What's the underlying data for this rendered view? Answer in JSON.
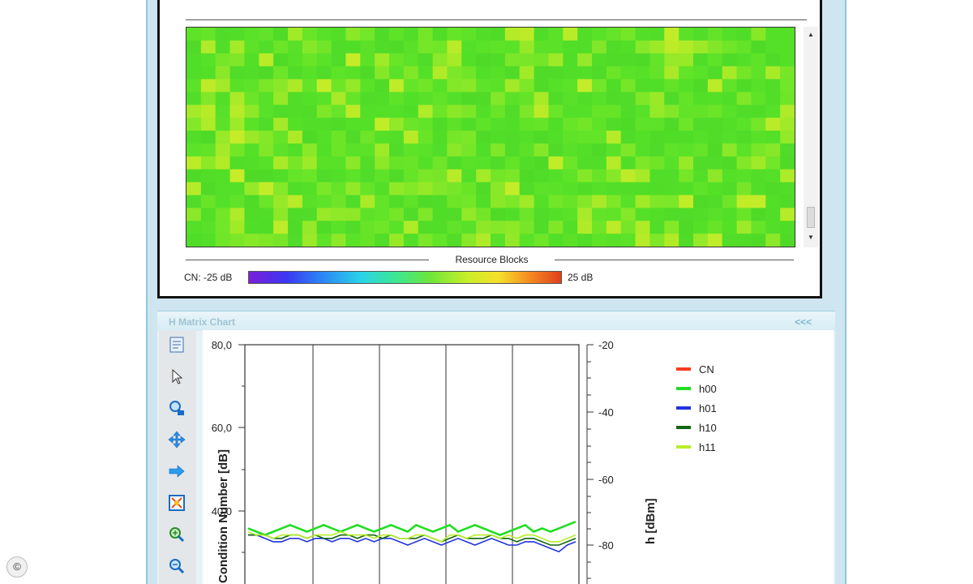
{
  "heatmap": {
    "axis_label": "Resource Blocks",
    "colorbar_min_label": "CN: -25 dB",
    "colorbar_max_label": "25 dB"
  },
  "h_matrix": {
    "panel_title": "H Matrix Chart",
    "collapse_label": "<<<",
    "tools": [
      "properties-icon",
      "pointer-icon",
      "zoom-fit-icon",
      "pan-icon",
      "arrow-right-icon",
      "zoom-box-icon",
      "zoom-in-icon",
      "zoom-out-icon"
    ]
  },
  "copyright_symbol": "©",
  "chart_data": {
    "type": "line",
    "ylabel": "Condition Number [dB]",
    "y2label": "h [dBm]",
    "y_ticks": [
      "80,0",
      "60,0",
      "40,0"
    ],
    "y2_ticks": [
      "-20",
      "-40",
      "-60",
      "-80"
    ],
    "ylim": [
      20,
      80
    ],
    "y2lim": [
      -120,
      -20
    ],
    "legend_placement": "right",
    "grid": "vertical",
    "series": [
      {
        "name": "CN",
        "color": "#ff3a20",
        "values": []
      },
      {
        "name": "h00",
        "color": "#22dd22",
        "values": [
          -75,
          -76,
          -77,
          -76,
          -75,
          -74,
          -75,
          -76,
          -75,
          -74,
          -75,
          -76,
          -75,
          -74,
          -75,
          -76,
          -75,
          -74,
          -75,
          -76,
          -74,
          -75,
          -76,
          -75,
          -74,
          -76,
          -75,
          -74,
          -75,
          -76,
          -77,
          -76,
          -75,
          -74,
          -76,
          -75,
          -76,
          -75,
          -74,
          -73
        ]
      },
      {
        "name": "h01",
        "color": "#2233dd",
        "values": [
          -77,
          -77,
          -78,
          -79,
          -79,
          -78,
          -78,
          -79,
          -78,
          -78,
          -79,
          -78,
          -78,
          -79,
          -78,
          -79,
          -78,
          -78,
          -79,
          -80,
          -79,
          -78,
          -79,
          -80,
          -79,
          -78,
          -79,
          -80,
          -79,
          -78,
          -79,
          -80,
          -80,
          -79,
          -79,
          -80,
          -81,
          -82,
          -80,
          -79
        ]
      },
      {
        "name": "h10",
        "color": "#116611",
        "values": [
          -77,
          -77,
          -77,
          -78,
          -78,
          -77,
          -77,
          -78,
          -77,
          -78,
          -78,
          -77,
          -77,
          -78,
          -77,
          -77,
          -78,
          -77,
          -78,
          -78,
          -78,
          -77,
          -78,
          -79,
          -78,
          -77,
          -78,
          -78,
          -78,
          -77,
          -78,
          -78,
          -79,
          -78,
          -78,
          -79,
          -80,
          -80,
          -79,
          -78
        ]
      },
      {
        "name": "h11",
        "color": "#b8ee2a",
        "values": [
          -76,
          -77,
          -77,
          -78,
          -77,
          -77,
          -77,
          -78,
          -77,
          -77,
          -77,
          -76,
          -77,
          -77,
          -77,
          -78,
          -77,
          -77,
          -78,
          -78,
          -77,
          -77,
          -78,
          -79,
          -77,
          -77,
          -78,
          -77,
          -77,
          -77,
          -78,
          -77,
          -78,
          -77,
          -77,
          -78,
          -79,
          -79,
          -78,
          -77
        ]
      }
    ]
  }
}
